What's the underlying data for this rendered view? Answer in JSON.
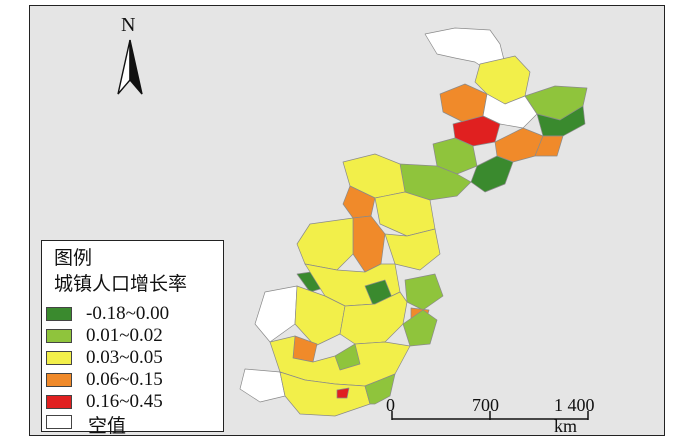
{
  "north": {
    "label": "N",
    "icon": "north-arrow-icon"
  },
  "legend": {
    "title": "图例",
    "subtitle": "城镇人口增长率",
    "items": [
      {
        "label": "-0.18~0.00",
        "color": "#3a8a2e"
      },
      {
        "label": "0.01~0.02",
        "color": "#8fc43c"
      },
      {
        "label": "0.03~0.05",
        "color": "#f2ef4a"
      },
      {
        "label": "0.06~0.15",
        "color": "#f08a2a"
      },
      {
        "label": "0.16~0.45",
        "color": "#e02020"
      },
      {
        "label": "空值",
        "color": "#ffffff"
      }
    ]
  },
  "scale": {
    "labels": [
      "0",
      "700",
      "1 400 km"
    ]
  },
  "colors": {
    "frame_bg": "#e5e5e5",
    "boundary": "#8a8a8a"
  }
}
